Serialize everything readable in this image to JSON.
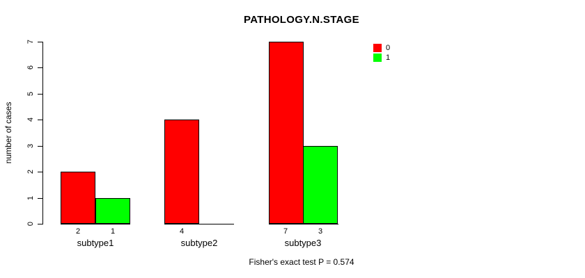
{
  "title": "PATHOLOGY.N.STAGE",
  "ylabel": "number of cases",
  "footnote": "Fisher's exact test P = 0.574",
  "colors": {
    "series0": "#ff0000",
    "series1": "#00ff00",
    "axis": "#000000"
  },
  "legend": [
    {
      "label": "0",
      "color": "#ff0000"
    },
    {
      "label": "1",
      "color": "#00ff00"
    }
  ],
  "chart_data": {
    "type": "bar",
    "title": "PATHOLOGY.N.STAGE",
    "xlabel": "",
    "ylabel": "number of cases",
    "categories": [
      "subtype1",
      "subtype2",
      "subtype3"
    ],
    "series": [
      {
        "name": "0",
        "color": "#ff0000",
        "values": [
          2,
          4,
          7
        ]
      },
      {
        "name": "1",
        "color": "#00ff00",
        "values": [
          1,
          0,
          3
        ]
      }
    ],
    "bar_value_labels": [
      [
        "2",
        "1"
      ],
      [
        "4",
        ""
      ],
      [
        "7",
        "3"
      ]
    ],
    "ylim": [
      0,
      7
    ],
    "yticks": [
      0,
      1,
      2,
      3,
      4,
      5,
      6,
      7
    ],
    "grid": false,
    "legend_position": "top-right",
    "annotation": "Fisher's exact test P = 0.574"
  }
}
